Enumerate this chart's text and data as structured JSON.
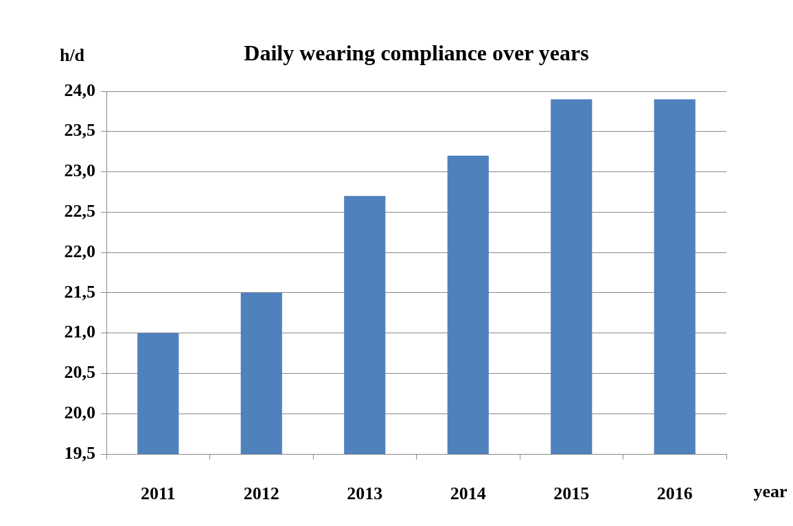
{
  "chart_data": {
    "type": "bar",
    "title": "Daily wearing compliance over years",
    "ylabel": "h/d",
    "xlabel": "year",
    "categories": [
      "2011",
      "2012",
      "2013",
      "2014",
      "2015",
      "2016"
    ],
    "values": [
      21.0,
      21.5,
      22.7,
      23.2,
      23.9,
      23.9
    ],
    "color": "#4f81bd",
    "ylim": [
      19.5,
      24.0
    ],
    "yticks": [
      {
        "value": 19.5,
        "label": "19,5"
      },
      {
        "value": 20.0,
        "label": "20,0"
      },
      {
        "value": 20.5,
        "label": "20,5"
      },
      {
        "value": 21.0,
        "label": "21,0"
      },
      {
        "value": 21.5,
        "label": "21,5"
      },
      {
        "value": 22.0,
        "label": "22,0"
      },
      {
        "value": 22.5,
        "label": "22,5"
      },
      {
        "value": 23.0,
        "label": "23,0"
      },
      {
        "value": 23.5,
        "label": "23,5"
      },
      {
        "value": 24.0,
        "label": "24,0"
      }
    ],
    "grid": "y",
    "legend": false
  }
}
